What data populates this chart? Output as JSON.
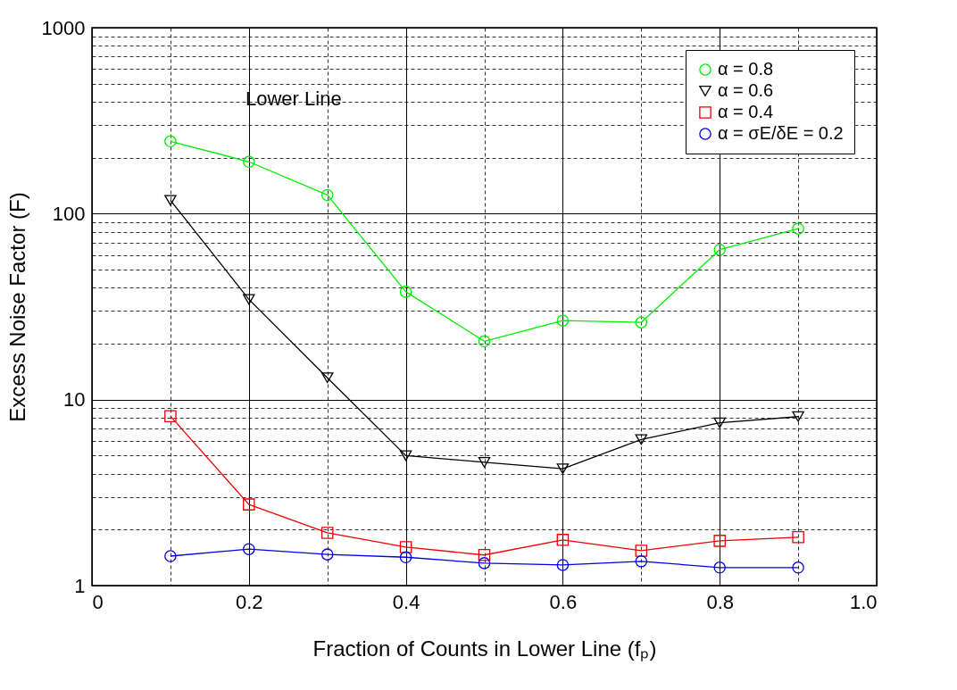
{
  "chart_data": {
    "type": "line",
    "xlabel": "Fraction of Counts in Lower Line (fₚ)",
    "ylabel": "Excess Noise Factor (F)",
    "annotations": [
      "Lower Line"
    ],
    "x": [
      0.1,
      0.2,
      0.3,
      0.4,
      0.5,
      0.6,
      0.7,
      0.8,
      0.9
    ],
    "series": [
      {
        "name": "α = 0.8",
        "color": "#00ee00",
        "marker": "circle",
        "values": [
          245,
          190,
          126,
          38,
          20.6,
          26.6,
          26,
          64,
          83
        ]
      },
      {
        "name": "α = 0.6",
        "color": "#000000",
        "marker": "triangle",
        "values": [
          118,
          34.6,
          13.1,
          5.0,
          4.6,
          4.25,
          6.1,
          7.5,
          8.1
        ]
      },
      {
        "name": "α = 0.4",
        "color": "#ee0000",
        "marker": "square",
        "values": [
          8.15,
          2.73,
          1.92,
          1.61,
          1.46,
          1.76,
          1.54,
          1.74,
          1.82
        ]
      },
      {
        "name": "α = σE/δE = 0.2",
        "color": "#0000ee",
        "marker": "circle",
        "values": [
          1.44,
          1.57,
          1.47,
          1.42,
          1.32,
          1.29,
          1.35,
          1.25,
          1.25
        ]
      }
    ],
    "xlim": [
      0,
      1
    ],
    "xticks": [
      0,
      {
        "value": 0.1,
        "label": null
      },
      0.2,
      {
        "value": 0.3,
        "label": null
      },
      0.4,
      {
        "value": 0.5,
        "label": null
      },
      0.6,
      {
        "value": 0.7,
        "label": null
      },
      0.8,
      {
        "value": 0.9,
        "label": null
      },
      {
        "value": 1,
        "label": "1.0"
      }
    ],
    "ylim": [
      1,
      1000
    ],
    "yticks": [
      1,
      {
        "value": 2,
        "label": null
      },
      {
        "value": 3,
        "label": null
      },
      {
        "value": 4,
        "label": null
      },
      {
        "value": 5,
        "label": null
      },
      {
        "value": 6,
        "label": null
      },
      {
        "value": 7,
        "label": null
      },
      {
        "value": 8,
        "label": null
      },
      {
        "value": 9,
        "label": null
      },
      10,
      {
        "value": 20,
        "label": null
      },
      {
        "value": 30,
        "label": null
      },
      {
        "value": 40,
        "label": null
      },
      {
        "value": 50,
        "label": null
      },
      {
        "value": 60,
        "label": null
      },
      {
        "value": 70,
        "label": null
      },
      {
        "value": 80,
        "label": null
      },
      {
        "value": 90,
        "label": null
      },
      100,
      {
        "value": 200,
        "label": null
      },
      {
        "value": 300,
        "label": null
      },
      {
        "value": 400,
        "label": null
      },
      {
        "value": 500,
        "label": null
      },
      {
        "value": 600,
        "label": null
      },
      {
        "value": 700,
        "label": null
      },
      {
        "value": 800,
        "label": null
      },
      {
        "value": 900,
        "label": null
      },
      1000
    ],
    "log": true,
    "grid": true,
    "legend": "top right",
    "line_style": "solid"
  }
}
